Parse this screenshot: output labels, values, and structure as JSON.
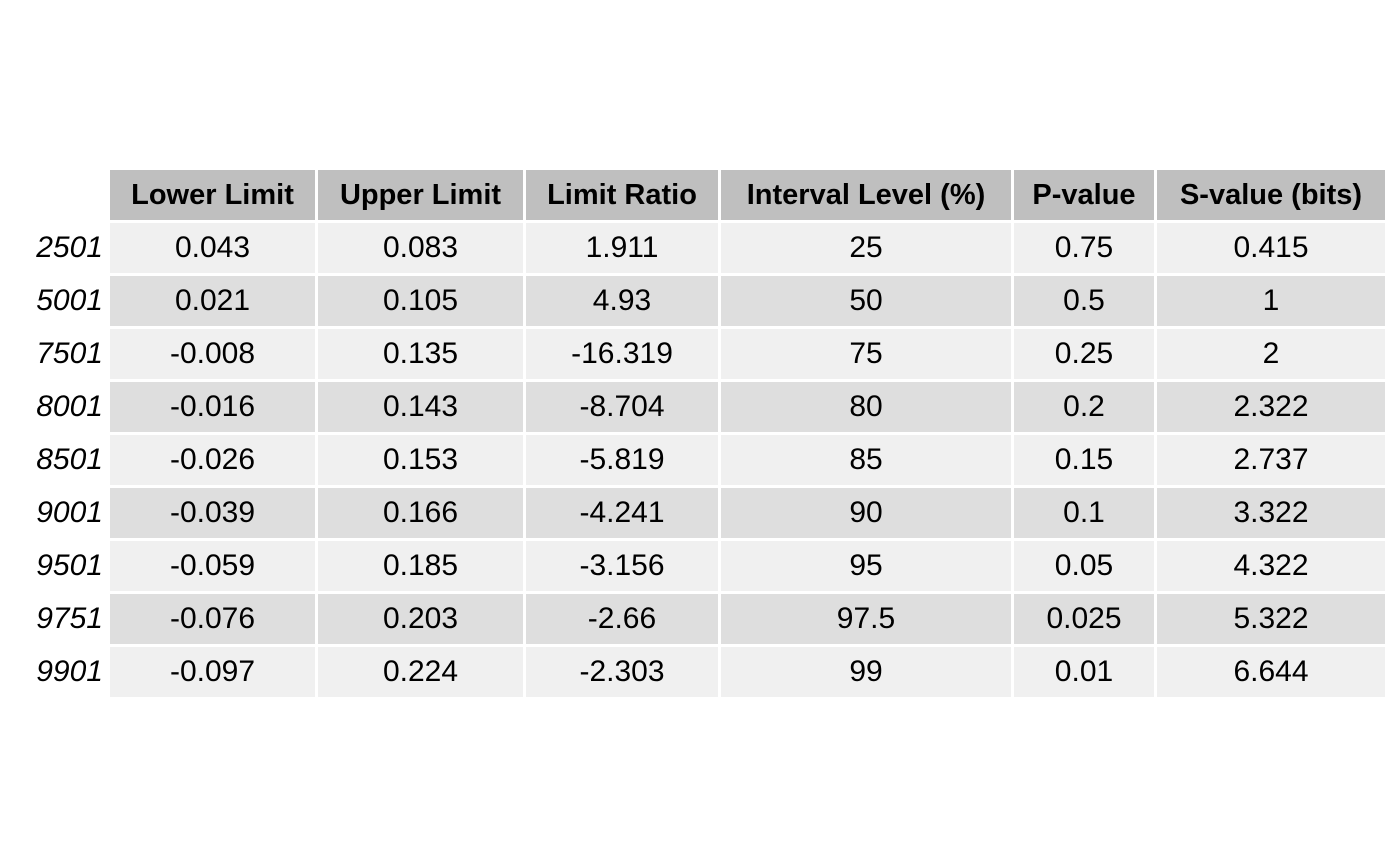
{
  "chart_data": {
    "type": "table",
    "columns": [
      "Lower Limit",
      "Upper Limit",
      "Limit Ratio",
      "Interval Level (%)",
      "P-value",
      "S-value (bits)"
    ],
    "rows": [
      {
        "label": "2501",
        "values": [
          "0.043",
          "0.083",
          "1.911",
          "25",
          "0.75",
          "0.415"
        ]
      },
      {
        "label": "5001",
        "values": [
          "0.021",
          "0.105",
          "4.93",
          "50",
          "0.5",
          "1"
        ]
      },
      {
        "label": "7501",
        "values": [
          "-0.008",
          "0.135",
          "-16.319",
          "75",
          "0.25",
          "2"
        ]
      },
      {
        "label": "8001",
        "values": [
          "-0.016",
          "0.143",
          "-8.704",
          "80",
          "0.2",
          "2.322"
        ]
      },
      {
        "label": "8501",
        "values": [
          "-0.026",
          "0.153",
          "-5.819",
          "85",
          "0.15",
          "2.737"
        ]
      },
      {
        "label": "9001",
        "values": [
          "-0.039",
          "0.166",
          "-4.241",
          "90",
          "0.1",
          "3.322"
        ]
      },
      {
        "label": "9501",
        "values": [
          "-0.059",
          "0.185",
          "-3.156",
          "95",
          "0.05",
          "4.322"
        ]
      },
      {
        "label": "9751",
        "values": [
          "-0.076",
          "0.203",
          "-2.66",
          "97.5",
          "0.025",
          "5.322"
        ]
      },
      {
        "label": "9901",
        "values": [
          "-0.097",
          "0.224",
          "-2.303",
          "99",
          "0.01",
          "6.644"
        ]
      }
    ]
  },
  "colors": {
    "header_bg": "#bfbfbf",
    "row_light": "#f0f0f0",
    "row_dark": "#dedede"
  }
}
